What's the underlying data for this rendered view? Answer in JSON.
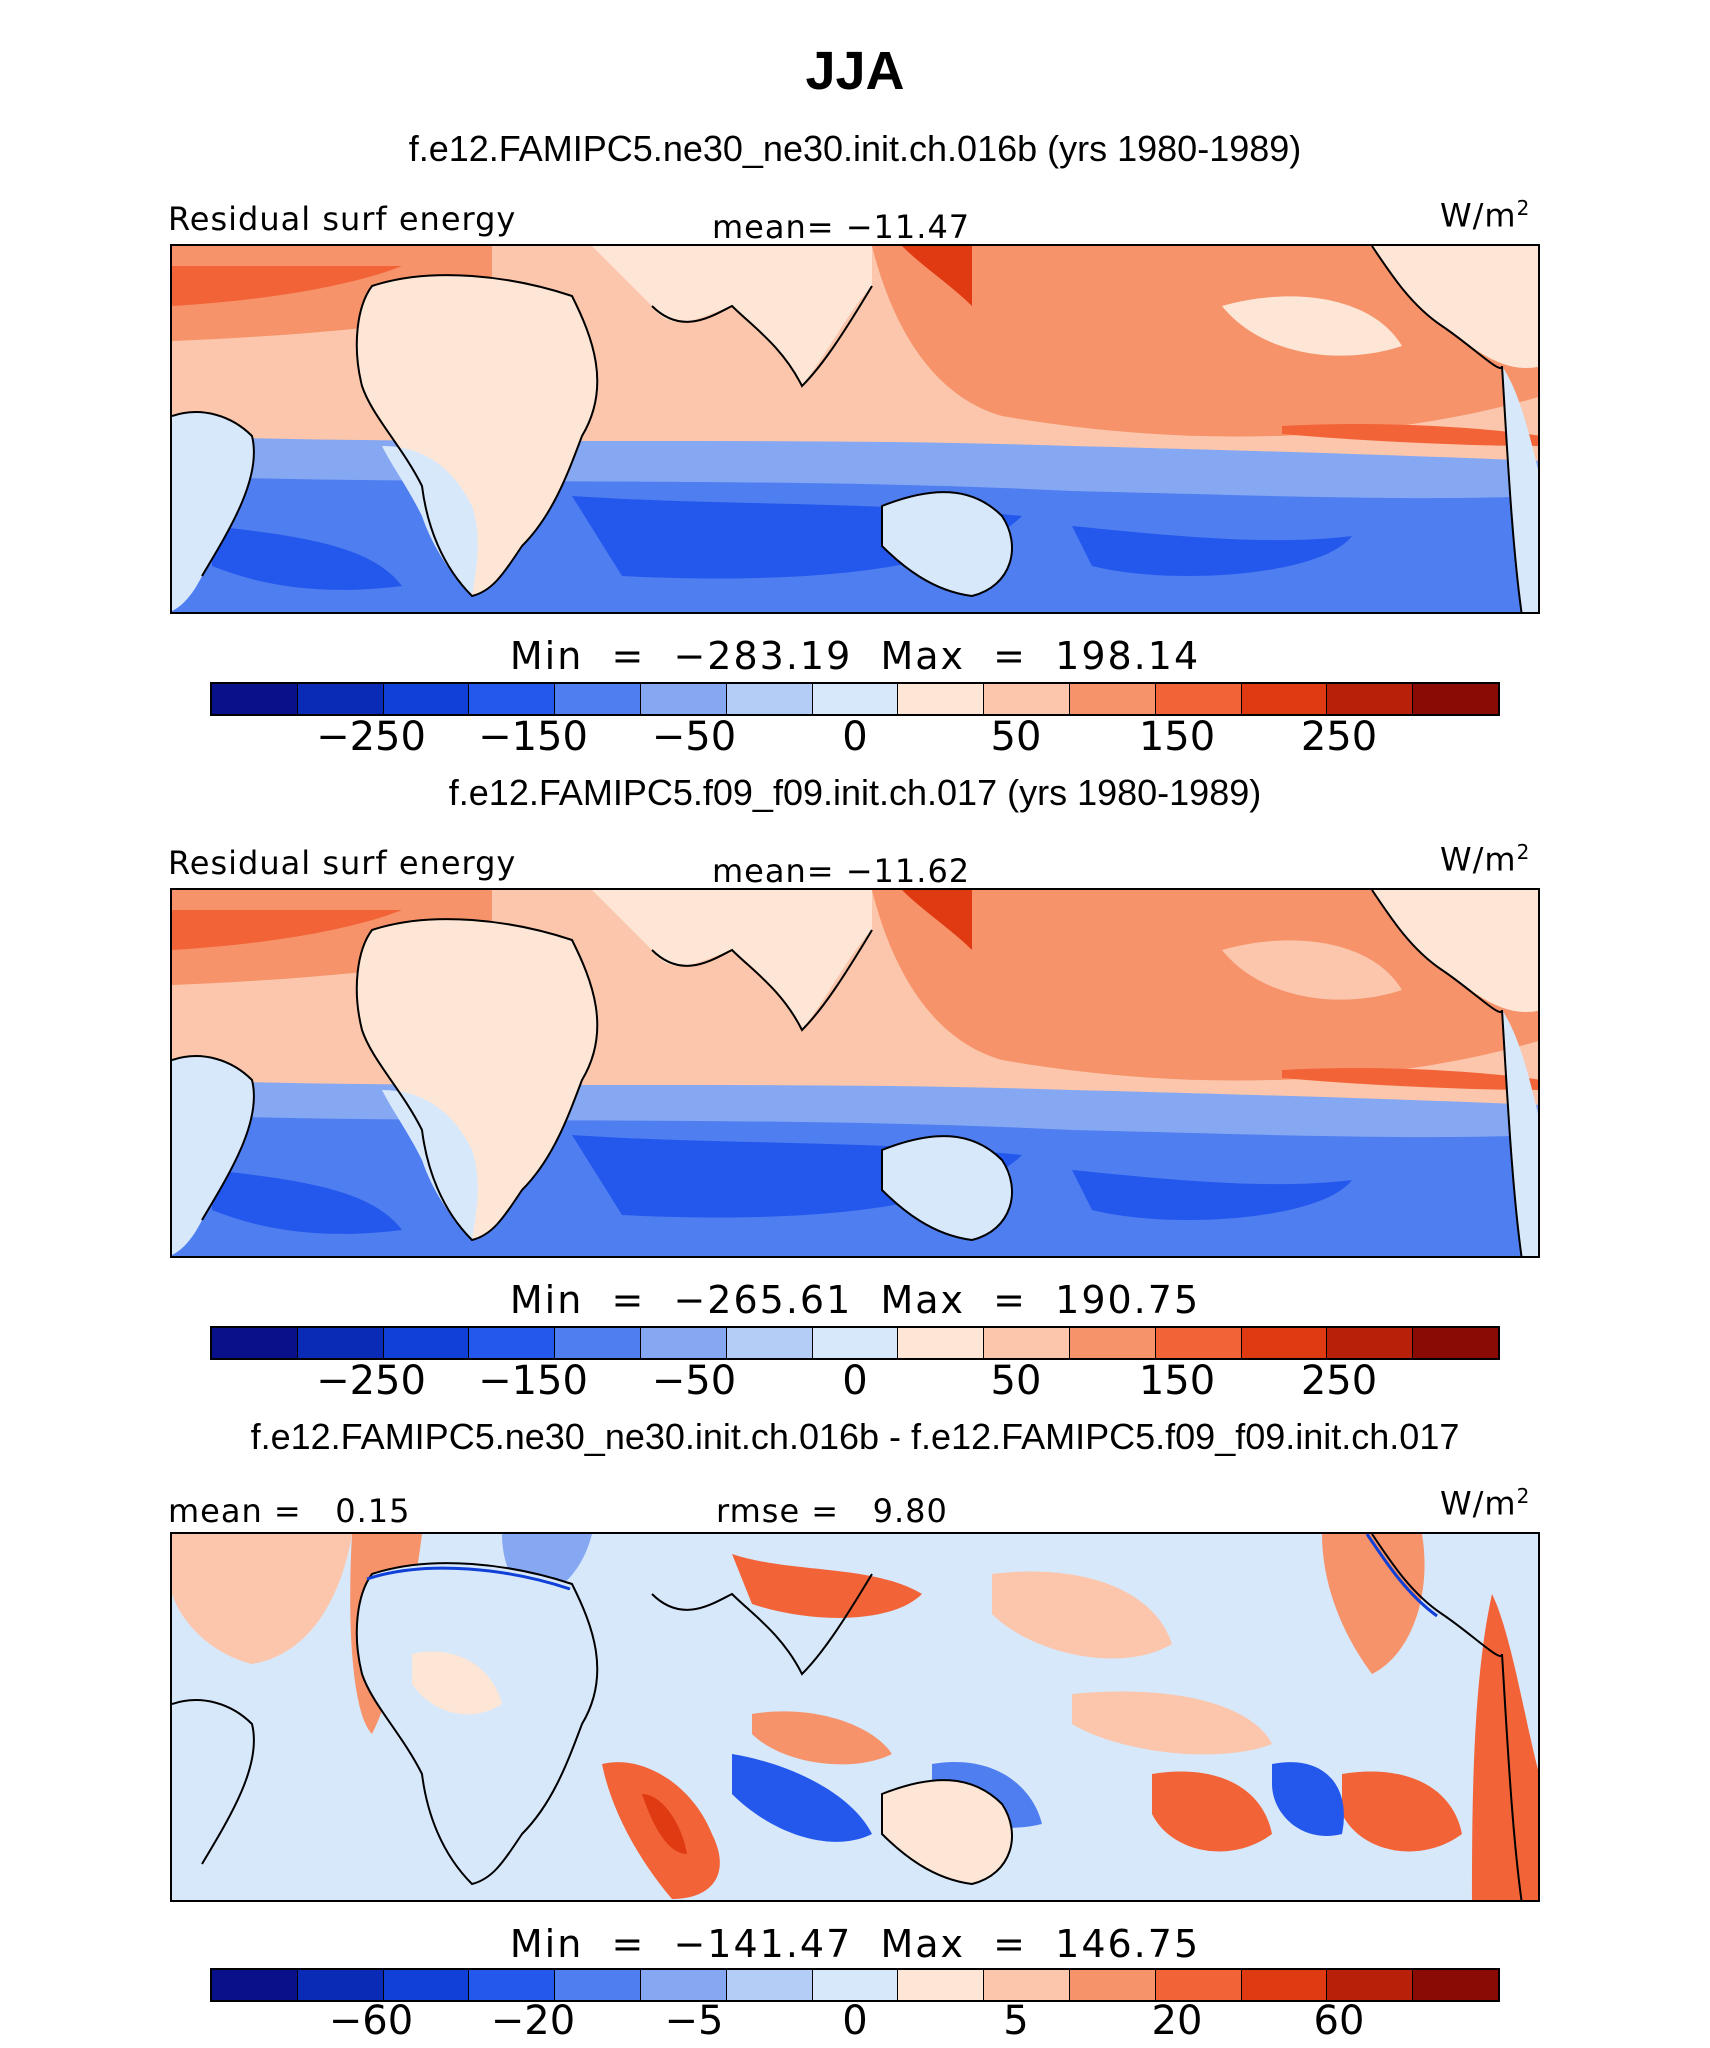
{
  "title": "JJA",
  "units": "W/m",
  "units_exp": "2",
  "panels": [
    {
      "subtitle": "f.e12.FAMIPC5.ne30_ne30.init.ch.016b (yrs 1980-1989)",
      "left_label": "Residual surf energy",
      "center_label": "mean= −11.47",
      "min_label": "Min",
      "min_value": "−283.19",
      "max_label": "Max",
      "max_value": "198.14",
      "tick_labels": [
        "−250",
        "−150",
        "−50",
        "0",
        "50",
        "150",
        "250"
      ]
    },
    {
      "subtitle": "f.e12.FAMIPC5.f09_f09.init.ch.017 (yrs 1980-1989)",
      "left_label": "Residual surf energy",
      "center_label": "mean= −11.62",
      "min_label": "Min",
      "min_value": "−265.61",
      "max_label": "Max",
      "max_value": "190.75",
      "tick_labels": [
        "−250",
        "−150",
        "−50",
        "0",
        "50",
        "150",
        "250"
      ]
    },
    {
      "subtitle": "f.e12.FAMIPC5.ne30_ne30.init.ch.016b - f.e12.FAMIPC5.f09_f09.init.ch.017",
      "left_label": "mean =   0.15",
      "center_label": "rmse =   9.80",
      "min_label": "Min",
      "min_value": "−141.47",
      "max_label": "Max",
      "max_value": "146.75",
      "tick_labels": [
        "−60",
        "−20",
        "−5",
        "0",
        "5",
        "20",
        "60"
      ]
    }
  ],
  "colorbar_colors": [
    "#08108a",
    "#0a2bb5",
    "#1040d8",
    "#2458ec",
    "#4f7ef0",
    "#86a8f2",
    "#b4cdf6",
    "#d8e8fb",
    "#fde6d6",
    "#fbc6ab",
    "#f6936a",
    "#f26438",
    "#e03a12",
    "#b8200a",
    "#8a0a05"
  ]
}
